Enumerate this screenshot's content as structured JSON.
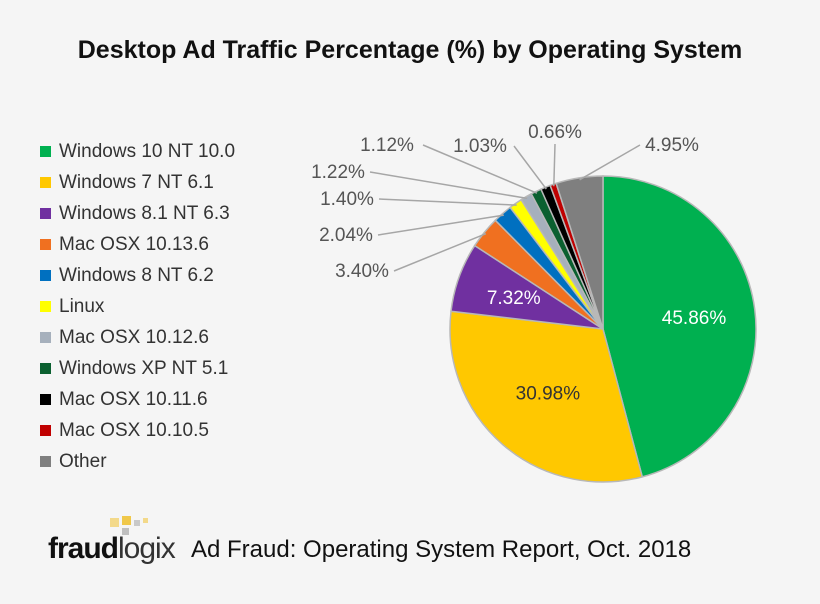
{
  "chart_data": {
    "type": "pie",
    "title": "Desktop Ad Traffic Percentage (%) by Operating System",
    "categories": [
      "Windows 10 NT 10.0",
      "Windows 7 NT 6.1",
      "Windows 8.1 NT 6.3",
      "Mac OSX 10.13.6",
      "Windows 8 NT 6.2",
      "Linux",
      "Mac OSX 10.12.6",
      "Windows XP NT 5.1",
      "Mac OSX 10.11.6",
      "Mac OSX 10.10.5",
      "Other"
    ],
    "values": [
      45.86,
      30.98,
      7.32,
      3.4,
      2.04,
      1.4,
      1.22,
      1.12,
      1.03,
      0.66,
      4.95
    ],
    "labels": [
      "45.86%",
      "30.98%",
      "7.32%",
      "3.40%",
      "2.04%",
      "1.40%",
      "1.22%",
      "1.12%",
      "1.03%",
      "0.66%",
      "4.95%"
    ],
    "colors": [
      "#00b050",
      "#ffc800",
      "#7030a0",
      "#f07020",
      "#0070c0",
      "#ffff00",
      "#a6b0bc",
      "#0b6030",
      "#000000",
      "#c00000",
      "#7f7f7f"
    ],
    "legend_position": "left"
  },
  "footer": {
    "logo_bold": "fraud",
    "logo_light": "logix",
    "caption": "Ad Fraud: Operating System Report, Oct. 2018"
  }
}
